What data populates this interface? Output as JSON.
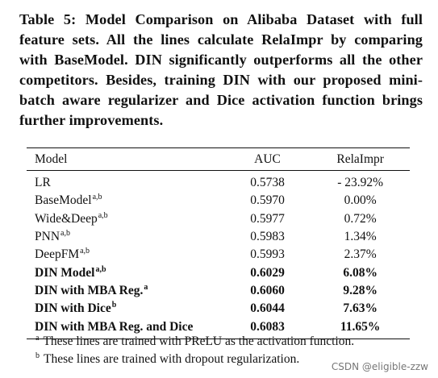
{
  "caption": {
    "lines": [
      "Table 5: Model Comparison on Alibaba Dataset with full",
      "feature sets. All the lines calculate RelaImpr by comparing",
      "with BaseModel. DIN significantly outperforms all the other",
      "competitors. Besides, training DIN with our proposed mini-",
      "batch aware regularizer and Dice activation function brings",
      "further improvements."
    ]
  },
  "table": {
    "headers": {
      "model": "Model",
      "auc": "AUC",
      "relaimpr": "RelaImpr"
    },
    "rows": [
      {
        "model": "LR",
        "sup": "",
        "auc": "0.5738",
        "relaimpr": "- 23.92%",
        "bold": false
      },
      {
        "model": "BaseModel",
        "sup": "a,b",
        "auc": "0.5970",
        "relaimpr": "0.00%",
        "bold": false
      },
      {
        "model": "Wide&Deep",
        "sup": "a,b",
        "auc": "0.5977",
        "relaimpr": "0.72%",
        "bold": false
      },
      {
        "model": "PNN",
        "sup": "a,b",
        "auc": "0.5983",
        "relaimpr": "1.34%",
        "bold": false
      },
      {
        "model": "DeepFM",
        "sup": "a,b",
        "auc": "0.5993",
        "relaimpr": "2.37%",
        "bold": false
      },
      {
        "model": "DIN Model",
        "sup": "a,b",
        "auc": "0.6029",
        "relaimpr": "6.08%",
        "bold": true
      },
      {
        "model": "DIN with MBA Reg.",
        "sup": "a",
        "auc": "0.6060",
        "relaimpr": "9.28%",
        "bold": true
      },
      {
        "model": "DIN with Dice",
        "sup": "b",
        "auc": "0.6044",
        "relaimpr": "7.63%",
        "bold": true
      },
      {
        "model": "DIN with MBA Reg. and Dice",
        "sup": "",
        "auc": "0.6083",
        "relaimpr": "11.65%",
        "bold": true
      }
    ]
  },
  "footnotes": [
    {
      "mark": "a",
      "text": "These lines are trained with PReLU as the activation function."
    },
    {
      "mark": "b",
      "text": "These lines are trained with dropout regularization."
    }
  ],
  "watermark": "CSDN @eligible-zzw"
}
